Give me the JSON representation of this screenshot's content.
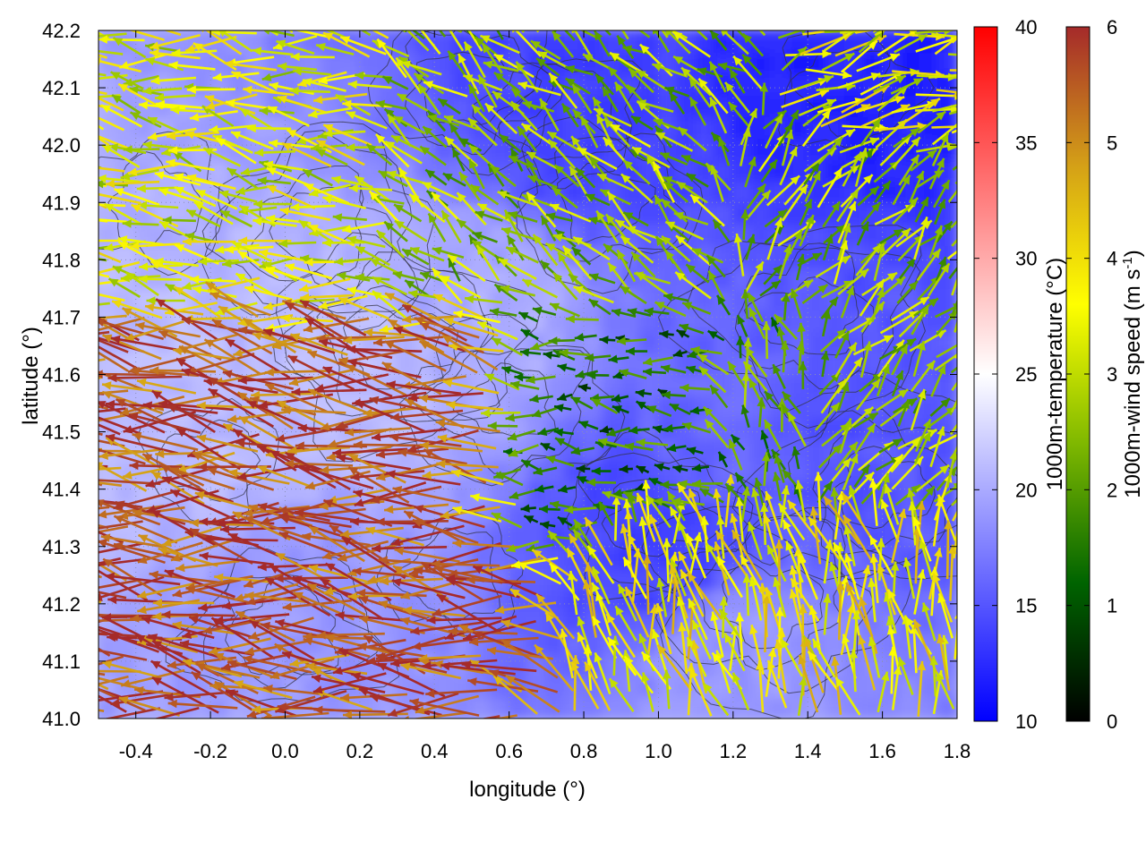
{
  "chart_data": {
    "type": "heatmap",
    "title": "",
    "xlabel": "longitude (°)",
    "ylabel": "latitude (°)",
    "xlim": [
      -0.5,
      1.8
    ],
    "ylim": [
      41.0,
      42.2
    ],
    "xticks": [
      "-0.4",
      "-0.2",
      "0.0",
      "0.2",
      "0.4",
      "0.6",
      "0.8",
      "1.0",
      "1.2",
      "1.4",
      "1.6",
      "1.8"
    ],
    "xtick_values": [
      -0.4,
      -0.2,
      0.0,
      0.2,
      0.4,
      0.6,
      0.8,
      1.0,
      1.2,
      1.4,
      1.6,
      1.8
    ],
    "yticks": [
      "41.0",
      "41.1",
      "41.2",
      "41.3",
      "41.4",
      "41.5",
      "41.6",
      "41.7",
      "41.8",
      "41.9",
      "42.0",
      "42.1",
      "42.2"
    ],
    "ytick_values": [
      41.0,
      41.1,
      41.2,
      41.3,
      41.4,
      41.5,
      41.6,
      41.7,
      41.8,
      41.9,
      42.0,
      42.1,
      42.2
    ],
    "grid": true,
    "temperature_colorbar": {
      "label": "1000m-temperature (°C)",
      "range": [
        10,
        40
      ],
      "ticks": [
        "10",
        "15",
        "20",
        "25",
        "30",
        "35",
        "40"
      ],
      "tick_values": [
        10,
        15,
        20,
        25,
        30,
        35,
        40
      ],
      "colors": [
        "#0000ff",
        "#ffffff",
        "#ff0000"
      ]
    },
    "wind_colorbar": {
      "label": "1000m-wind speed (m s",
      "label_sup": "-1",
      "label_end": ")",
      "range": [
        0,
        6
      ],
      "ticks": [
        "0",
        "1",
        "2",
        "3",
        "4",
        "5",
        "6"
      ],
      "tick_values": [
        0,
        1,
        2,
        3,
        4,
        5,
        6
      ],
      "colors": [
        "#000000",
        "#006400",
        "#7fb800",
        "#ffff00",
        "#d4a017",
        "#a52a2a"
      ]
    },
    "temperature_field_samples": [
      {
        "lon": -0.3,
        "lat": 41.5,
        "temp": 21
      },
      {
        "lon": 0.2,
        "lat": 41.6,
        "temp": 21
      },
      {
        "lon": 0.5,
        "lat": 41.7,
        "temp": 20
      },
      {
        "lon": 0.8,
        "lat": 42.05,
        "temp": 14
      },
      {
        "lon": 1.0,
        "lat": 41.3,
        "temp": 14
      },
      {
        "lon": 1.2,
        "lat": 41.5,
        "temp": 16
      },
      {
        "lon": 1.5,
        "lat": 42.15,
        "temp": 12
      },
      {
        "lon": 1.5,
        "lat": 41.5,
        "temp": 15
      },
      {
        "lon": 1.2,
        "lat": 41.1,
        "temp": 19
      },
      {
        "lon": 0.0,
        "lat": 41.2,
        "temp": 19
      }
    ],
    "wind_regions": [
      {
        "lon": [
          -0.5,
          0.6
        ],
        "lat": [
          41.1,
          41.7
        ],
        "u": -4.5,
        "v": 0.6,
        "speed": 5.6
      },
      {
        "lon": [
          -0.5,
          0.3
        ],
        "lat": [
          41.7,
          42.2
        ],
        "u": -3.0,
        "v": 0.5,
        "speed": 3.3
      },
      {
        "lon": [
          0.3,
          1.2
        ],
        "lat": [
          41.7,
          42.2
        ],
        "u": -1.5,
        "v": 1.2,
        "speed": 2.6
      },
      {
        "lon": [
          0.6,
          1.4
        ],
        "lat": [
          41.35,
          41.7
        ],
        "u": -1.2,
        "v": 0.1,
        "speed": 1.5
      },
      {
        "lon": [
          1.2,
          1.8
        ],
        "lat": [
          41.35,
          42.0
        ],
        "u": 0.8,
        "v": 1.0,
        "speed": 2.6
      },
      {
        "lon": [
          0.9,
          1.8
        ],
        "lat": [
          41.0,
          41.35
        ],
        "u": -0.6,
        "v": 2.6,
        "speed": 3.8
      },
      {
        "lon": [
          1.4,
          1.8
        ],
        "lat": [
          42.0,
          42.2
        ],
        "u": 2.0,
        "v": 0.6,
        "speed": 3.4
      }
    ]
  }
}
